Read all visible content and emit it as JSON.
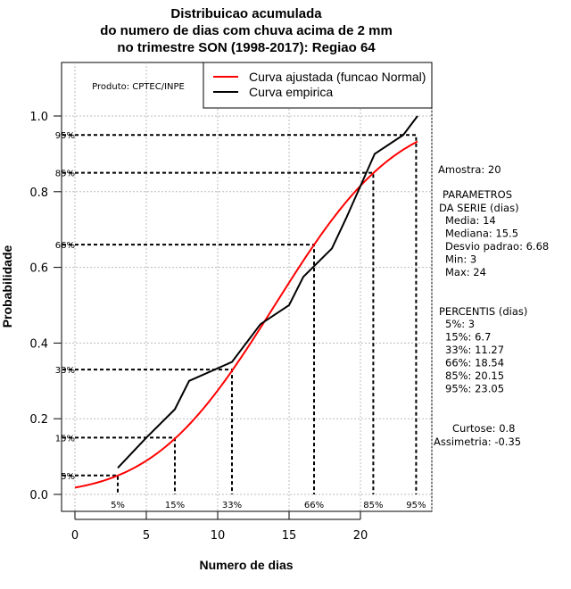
{
  "chart_data": {
    "type": "line",
    "title": [
      "Distribuicao acumulada",
      "do numero de dias com chuva acima de 2 mm",
      "no trimestre SON (1998-2017): Regiao 64"
    ],
    "xlabel": "Numero de dias",
    "ylabel": "Probabilidade",
    "xlim": [
      -1,
      25
    ],
    "ylim": [
      -0.04,
      1.14
    ],
    "xticks": [
      "0",
      "5",
      "10",
      "15",
      "20"
    ],
    "xtick_values": [
      0,
      5,
      10,
      15,
      20
    ],
    "yticks": [
      "0.0",
      "0.2",
      "0.4",
      "0.6",
      "0.8",
      "1.0"
    ],
    "ytick_values": [
      0,
      0.2,
      0.4,
      0.6,
      0.8,
      1.0
    ],
    "grid": true,
    "legend_position": "top-right",
    "product_label": "Produto: CPTEC/INPE",
    "series": [
      {
        "name": "Curva ajustada (funcao Normal)",
        "color": "#ff0000",
        "kind": "normal_cdf",
        "mean": 14,
        "sd": 6.68,
        "x_range": [
          0,
          24
        ]
      },
      {
        "name": "Curva empirica",
        "color": "#000000",
        "x": [
          3,
          5,
          7,
          8,
          11,
          13,
          15,
          16,
          18,
          19,
          21,
          23,
          24
        ],
        "y": [
          0.07,
          0.15,
          0.225,
          0.3,
          0.35,
          0.45,
          0.5,
          0.575,
          0.65,
          0.73,
          0.9,
          0.95,
          1.0
        ]
      }
    ],
    "percentile_lines": [
      {
        "label": "5%",
        "p": 0.05,
        "x": 3
      },
      {
        "label": "15%",
        "p": 0.15,
        "x": 7
      },
      {
        "label": "33%",
        "p": 0.33,
        "x": 11
      },
      {
        "label": "66%",
        "p": 0.66,
        "x": 16.75
      },
      {
        "label": "85%",
        "p": 0.85,
        "x": 20.9
      },
      {
        "label": "95%",
        "p": 0.95,
        "x": 23.9
      }
    ]
  },
  "side_panel": {
    "amostra": "Amostra: 20",
    "param_title1": "PARAMETROS",
    "param_title2": "DA SERIE (dias)",
    "params": [
      "Media: 14",
      "Mediana: 15.5",
      "Desvio padrao: 6.68",
      "Min: 3",
      "Max: 24"
    ],
    "perc_title": "PERCENTIS (dias)",
    "percentis": [
      "5%: 3",
      "15%: 6.7",
      "33%: 11.27",
      "66%: 18.54",
      "85%: 20.15",
      "95%: 23.05"
    ],
    "curtose": "Curtose: 0.8",
    "assimetria": "Assimetria: -0.35"
  }
}
